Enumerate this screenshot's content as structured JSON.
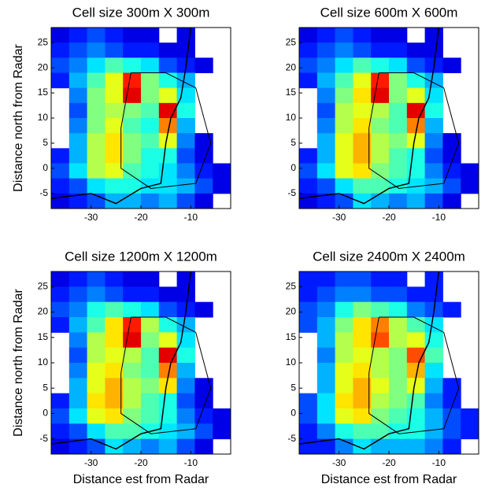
{
  "chart_data": [
    {
      "type": "heatmap",
      "title": "Cell size 300m X 300m",
      "y_label": "Distance north from Radar",
      "colormap": "jet",
      "xlim": [
        -38,
        -2
      ],
      "ylim": [
        -8,
        28
      ],
      "xticks": [
        -30,
        -20,
        -10
      ],
      "yticks": [
        -5,
        0,
        5,
        10,
        15,
        20,
        25
      ],
      "values": [
        [
          0.1,
          0.15,
          0.2,
          0.15,
          0.1,
          0.1,
          null,
          0.1,
          null,
          null
        ],
        [
          0.15,
          0.2,
          0.25,
          0.2,
          0.15,
          0.15,
          0.1,
          0.1,
          null,
          null
        ],
        [
          0.2,
          0.25,
          0.35,
          0.45,
          0.4,
          0.35,
          0.2,
          0.15,
          0.1,
          null
        ],
        [
          0.15,
          0.3,
          0.45,
          0.6,
          0.85,
          0.5,
          0.4,
          0.3,
          null,
          null
        ],
        [
          null,
          0.25,
          0.5,
          0.6,
          0.9,
          0.5,
          0.6,
          0.35,
          null,
          null
        ],
        [
          null,
          0.2,
          0.5,
          0.55,
          0.5,
          0.45,
          0.9,
          0.4,
          null,
          null
        ],
        [
          null,
          0.25,
          0.5,
          0.6,
          0.45,
          0.4,
          0.75,
          0.3,
          null,
          null
        ],
        [
          null,
          0.3,
          0.55,
          0.65,
          0.5,
          0.45,
          0.6,
          0.25,
          0.1,
          null
        ],
        [
          0.15,
          0.3,
          0.55,
          0.65,
          0.5,
          0.4,
          0.4,
          0.2,
          0.1,
          null
        ],
        [
          0.2,
          0.35,
          0.55,
          0.6,
          0.45,
          0.4,
          0.35,
          0.25,
          0.15,
          0.1
        ],
        [
          0.15,
          0.2,
          0.35,
          0.4,
          0.4,
          0.35,
          0.35,
          0.3,
          0.2,
          0.1
        ],
        [
          0.1,
          0.15,
          0.2,
          0.3,
          0.3,
          0.25,
          0.3,
          0.2,
          0.1,
          null
        ]
      ]
    },
    {
      "type": "heatmap",
      "title": "Cell size 600m X 600m",
      "colormap": "jet",
      "xlim": [
        -38,
        -2
      ],
      "ylim": [
        -8,
        28
      ],
      "xticks": [
        -30,
        -20,
        -10
      ],
      "yticks": [
        -5,
        0,
        5,
        10,
        15,
        20,
        25
      ],
      "values": [
        [
          0.1,
          0.15,
          0.2,
          0.15,
          0.1,
          0.1,
          null,
          0.1,
          null,
          null
        ],
        [
          0.15,
          0.2,
          0.25,
          0.2,
          0.15,
          0.15,
          0.1,
          0.1,
          null,
          null
        ],
        [
          0.2,
          0.25,
          0.35,
          0.45,
          0.4,
          0.35,
          0.2,
          0.15,
          0.1,
          null
        ],
        [
          0.15,
          0.3,
          0.45,
          0.6,
          0.85,
          0.5,
          0.4,
          0.3,
          null,
          null
        ],
        [
          null,
          0.25,
          0.5,
          0.65,
          0.9,
          0.5,
          0.6,
          0.35,
          null,
          null
        ],
        [
          null,
          0.2,
          0.55,
          0.6,
          0.55,
          0.45,
          0.9,
          0.4,
          null,
          null
        ],
        [
          null,
          0.25,
          0.55,
          0.65,
          0.5,
          0.45,
          0.75,
          0.3,
          null,
          null
        ],
        [
          null,
          0.3,
          0.6,
          0.7,
          0.55,
          0.5,
          0.6,
          0.25,
          0.1,
          null
        ],
        [
          0.15,
          0.3,
          0.6,
          0.7,
          0.55,
          0.45,
          0.4,
          0.2,
          0.1,
          null
        ],
        [
          0.2,
          0.35,
          0.6,
          0.65,
          0.5,
          0.45,
          0.4,
          0.25,
          0.15,
          0.1
        ],
        [
          0.15,
          0.2,
          0.35,
          0.45,
          0.45,
          0.4,
          0.35,
          0.3,
          0.2,
          0.1
        ],
        [
          0.1,
          0.15,
          0.2,
          0.35,
          0.3,
          0.25,
          0.3,
          0.2,
          0.1,
          null
        ]
      ]
    },
    {
      "type": "heatmap",
      "title": "Cell size 1200m X 1200m",
      "x_label": "Distance est from Radar",
      "y_label": "Distance north from Radar",
      "colormap": "jet",
      "xlim": [
        -38,
        -2
      ],
      "ylim": [
        -8,
        28
      ],
      "xticks": [
        -30,
        -20,
        -10
      ],
      "yticks": [
        -5,
        0,
        5,
        10,
        15,
        20,
        25
      ],
      "values": [
        [
          0.1,
          0.15,
          0.2,
          0.15,
          0.1,
          0.1,
          null,
          0.1,
          null,
          null
        ],
        [
          0.15,
          0.2,
          0.25,
          0.2,
          0.15,
          0.15,
          0.1,
          0.1,
          null,
          null
        ],
        [
          0.2,
          0.25,
          0.4,
          0.45,
          0.4,
          0.35,
          0.2,
          0.15,
          0.1,
          null
        ],
        [
          0.15,
          0.3,
          0.45,
          0.65,
          0.85,
          0.55,
          0.4,
          0.3,
          null,
          null
        ],
        [
          null,
          0.25,
          0.55,
          0.65,
          0.9,
          0.5,
          0.6,
          0.35,
          null,
          null
        ],
        [
          null,
          0.2,
          0.55,
          0.6,
          0.55,
          0.45,
          0.9,
          0.4,
          null,
          null
        ],
        [
          null,
          0.25,
          0.6,
          0.65,
          0.5,
          0.45,
          0.75,
          0.3,
          null,
          null
        ],
        [
          null,
          0.3,
          0.6,
          0.7,
          0.55,
          0.5,
          0.65,
          0.25,
          0.1,
          null
        ],
        [
          0.15,
          0.3,
          0.65,
          0.7,
          0.55,
          0.45,
          0.4,
          0.2,
          0.1,
          null
        ],
        [
          0.2,
          0.35,
          0.6,
          0.65,
          0.5,
          0.45,
          0.4,
          0.25,
          0.15,
          0.1
        ],
        [
          0.15,
          0.2,
          0.35,
          0.45,
          0.45,
          0.4,
          0.35,
          0.3,
          0.2,
          0.1
        ],
        [
          0.1,
          0.15,
          0.2,
          0.35,
          0.3,
          0.25,
          0.3,
          0.2,
          0.1,
          null
        ]
      ]
    },
    {
      "type": "heatmap",
      "title": "Cell size 2400m X 2400m",
      "x_label": "Distance est from Radar",
      "colormap": "jet",
      "xlim": [
        -38,
        -2
      ],
      "ylim": [
        -8,
        28
      ],
      "xticks": [
        -30,
        -20,
        -10
      ],
      "yticks": [
        -5,
        0,
        5,
        10,
        15,
        20,
        25
      ],
      "values": [
        [
          0.15,
          0.15,
          0.2,
          0.2,
          0.15,
          0.15,
          null,
          0.15,
          null,
          null
        ],
        [
          0.15,
          0.2,
          0.25,
          0.25,
          0.2,
          0.2,
          0.15,
          0.15,
          null,
          null
        ],
        [
          0.2,
          0.25,
          0.4,
          0.5,
          0.45,
          0.4,
          0.25,
          0.2,
          0.15,
          null
        ],
        [
          0.2,
          0.3,
          0.5,
          0.65,
          0.75,
          0.55,
          0.45,
          0.35,
          null,
          null
        ],
        [
          null,
          0.3,
          0.55,
          0.65,
          0.8,
          0.55,
          0.6,
          0.4,
          null,
          null
        ],
        [
          null,
          0.25,
          0.55,
          0.6,
          0.55,
          0.5,
          0.8,
          0.45,
          null,
          null
        ],
        [
          null,
          0.3,
          0.6,
          0.65,
          0.55,
          0.5,
          0.7,
          0.35,
          null,
          null
        ],
        [
          null,
          0.3,
          0.6,
          0.7,
          0.6,
          0.5,
          0.6,
          0.3,
          0.15,
          null
        ],
        [
          0.2,
          0.35,
          0.65,
          0.7,
          0.55,
          0.5,
          0.45,
          0.25,
          0.15,
          null
        ],
        [
          0.2,
          0.35,
          0.6,
          0.65,
          0.5,
          0.45,
          0.4,
          0.3,
          0.2,
          0.15
        ],
        [
          0.15,
          0.25,
          0.4,
          0.45,
          0.45,
          0.4,
          0.4,
          0.3,
          0.2,
          0.15
        ],
        [
          0.15,
          0.15,
          0.25,
          0.35,
          0.3,
          0.3,
          0.3,
          0.25,
          0.15,
          null
        ]
      ]
    }
  ]
}
